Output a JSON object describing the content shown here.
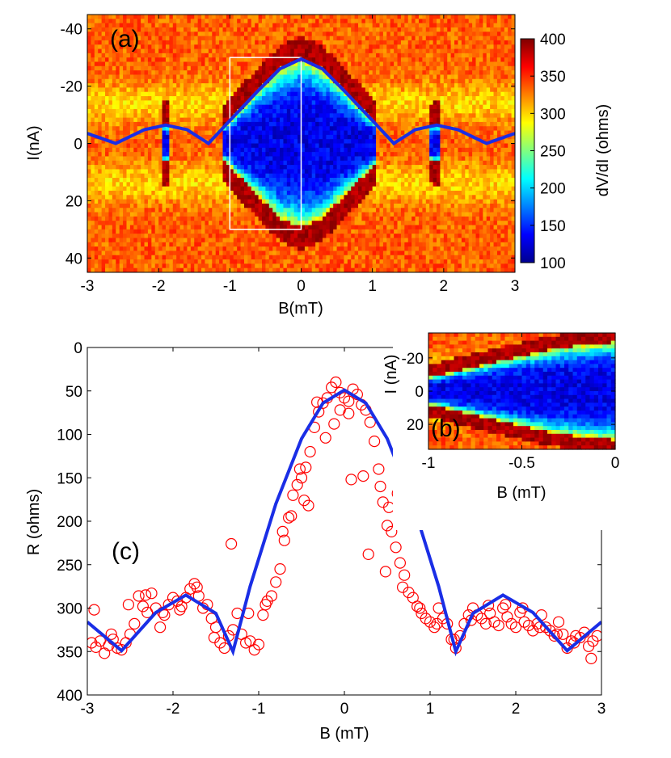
{
  "colors": {
    "fit_line": "#1a2ee6",
    "markers": "#ff0000",
    "frame": "#000000",
    "highlight_box": "#ffffff"
  },
  "colorscale": [
    "#00008f",
    "#0000ff",
    "#0080ff",
    "#00ffff",
    "#80ff80",
    "#ffff00",
    "#ff8000",
    "#ff0000",
    "#800000"
  ],
  "chart_data": [
    {
      "id": "a",
      "type": "heatmap",
      "panel_label": "(a)",
      "xlabel": "B(mT)",
      "ylabel": "I(nA)",
      "xlim": [
        -3,
        3
      ],
      "ylim": [
        -45,
        45
      ],
      "y_reversed": true,
      "xticks": [
        -3,
        -2,
        -1,
        0,
        1,
        2,
        3
      ],
      "xtick_labels": [
        "-3",
        "-2",
        "-1",
        "0",
        "1",
        "2",
        "3"
      ],
      "yticks": [
        -40,
        -20,
        0,
        20,
        40
      ],
      "ytick_labels": [
        "-40",
        "-20",
        "0",
        "20",
        "40"
      ],
      "colorbar": {
        "label": "dV/dI (ohms)",
        "range": [
          100,
          400
        ],
        "ticks": [
          100,
          150,
          200,
          250,
          300,
          350,
          400
        ],
        "tick_labels": [
          "100",
          "150",
          "200",
          "250",
          "300",
          "350",
          "400"
        ]
      },
      "overlay_line": {
        "name": "critical current envelope",
        "x": [
          -3.0,
          -2.6,
          -2.2,
          -1.9,
          -1.6,
          -1.3,
          -1.0,
          -0.6,
          -0.3,
          0.0,
          0.3,
          0.6,
          1.0,
          1.3,
          1.6,
          1.9,
          2.2,
          2.6,
          3.0
        ],
        "y": [
          -3.5,
          0.0,
          -4.8,
          -6.4,
          -4.8,
          0.0,
          -8.0,
          -18.5,
          -26.0,
          -29.5,
          -26.0,
          -18.5,
          -8.0,
          0.0,
          -4.8,
          -6.4,
          -4.8,
          0.0,
          -3.5
        ]
      },
      "highlight_box": {
        "x": [
          -1.0,
          0.0
        ],
        "y": [
          -30,
          30
        ]
      }
    },
    {
      "id": "b",
      "type": "heatmap",
      "panel_label": "(b)",
      "inset": true,
      "xlabel": "B (mT)",
      "ylabel": "I (nA)",
      "xlim": [
        -1,
        0
      ],
      "ylim": [
        -35,
        35
      ],
      "y_reversed": true,
      "xticks": [
        -1,
        -0.5,
        0
      ],
      "xtick_labels": [
        "-1",
        "-0.5",
        "0"
      ],
      "yticks": [
        -20,
        0,
        20
      ],
      "ytick_labels": [
        "-20",
        "0",
        "20"
      ]
    },
    {
      "id": "c",
      "type": "scatter",
      "panel_label": "(c)",
      "xlabel": "B (mT)",
      "ylabel": "R (ohms)",
      "xlim": [
        -3,
        3
      ],
      "ylim": [
        0,
        400
      ],
      "y_reversed": true,
      "xticks": [
        -3,
        -2,
        -1,
        0,
        1,
        2,
        3
      ],
      "xtick_labels": [
        "-3",
        "-2",
        "-1",
        "0",
        "1",
        "2",
        "3"
      ],
      "yticks": [
        0,
        50,
        100,
        150,
        200,
        250,
        300,
        350,
        400
      ],
      "ytick_labels": [
        "0",
        "50",
        "100",
        "150",
        "200",
        "250",
        "300",
        "350",
        "400"
      ],
      "fit_line": {
        "x": [
          -3.0,
          -2.6,
          -2.2,
          -1.85,
          -1.5,
          -1.3,
          -1.1,
          -0.8,
          -0.5,
          -0.25,
          0.0,
          0.25,
          0.5,
          0.8,
          1.1,
          1.3,
          1.5,
          1.85,
          2.2,
          2.6,
          3.0
        ],
        "y": [
          316,
          349,
          305,
          285,
          306,
          350,
          275,
          180,
          105,
          64,
          49,
          64,
          105,
          180,
          275,
          350,
          306,
          285,
          305,
          349,
          316
        ]
      },
      "points": {
        "x": [
          -2.95,
          -2.9,
          -2.85,
          -2.8,
          -2.75,
          -2.7,
          -2.65,
          -2.6,
          -2.55,
          -2.5,
          -2.45,
          -2.4,
          -2.35,
          -2.3,
          -2.25,
          -2.2,
          -2.15,
          -2.1,
          -2.05,
          -2.0,
          -1.95,
          -1.9,
          -1.85,
          -1.8,
          -1.75,
          -1.7,
          -1.65,
          -1.6,
          -1.55,
          -1.5,
          -1.45,
          -1.4,
          -1.35,
          -1.3,
          -1.25,
          -1.2,
          -1.15,
          -1.1,
          -1.05,
          -1.0,
          -0.95,
          -0.9,
          -0.85,
          -0.8,
          -0.75,
          -0.7,
          -0.65,
          -0.6,
          -0.55,
          -0.5,
          -0.45,
          -0.4,
          -0.35,
          -0.3,
          -0.25,
          -0.2,
          -0.15,
          -0.1,
          -0.05,
          0.0,
          0.05,
          0.1,
          0.15,
          0.2,
          0.25,
          0.3,
          0.35,
          0.4,
          0.45,
          0.5,
          0.55,
          0.6,
          0.65,
          0.7,
          0.75,
          0.8,
          0.85,
          0.9,
          0.95,
          1.0,
          1.05,
          1.1,
          1.15,
          1.2,
          1.25,
          1.3,
          1.35,
          1.4,
          1.45,
          1.5,
          1.55,
          1.6,
          1.65,
          1.7,
          1.75,
          1.8,
          1.85,
          1.9,
          1.95,
          2.0,
          2.05,
          2.1,
          2.15,
          2.2,
          2.25,
          2.3,
          2.35,
          2.4,
          2.45,
          2.5,
          2.55,
          2.6,
          2.65,
          2.7,
          2.75,
          2.8,
          2.85,
          2.9,
          2.95,
          -2.92,
          -2.72,
          -2.52,
          -2.32,
          -2.12,
          -1.92,
          -1.72,
          -1.52,
          -1.32,
          -1.12,
          -0.92,
          -0.72,
          -0.52,
          -0.32,
          -0.12,
          0.08,
          0.28,
          0.48,
          0.68,
          0.88,
          1.08,
          1.28,
          1.48,
          1.68,
          1.88,
          2.08,
          2.28,
          2.48,
          2.68,
          2.88,
          -0.47,
          -0.62,
          -0.42,
          0.62,
          0.42,
          0.52,
          -0.22,
          0.22,
          -0.05,
          0.05
        ],
        "y": [
          340,
          345,
          338,
          352,
          343,
          336,
          346,
          348,
          340,
          330,
          318,
          286,
          298,
          305,
          283,
          300,
          322,
          308,
          296,
          288,
          292,
          298,
          288,
          278,
          272,
          286,
          300,
          296,
          312,
          322,
          340,
          346,
          332,
          325,
          306,
          330,
          340,
          338,
          348,
          342,
          308,
          292,
          286,
          270,
          255,
          222,
          196,
          170,
          158,
          150,
          138,
          120,
          92,
          74,
          64,
          58,
          46,
          40,
          52,
          58,
          62,
          48,
          54,
          66,
          72,
          86,
          108,
          140,
          178,
          205,
          212,
          230,
          248,
          262,
          282,
          288,
          298,
          306,
          312,
          316,
          322,
          300,
          312,
          318,
          336,
          346,
          332,
          318,
          308,
          300,
          308,
          312,
          318,
          306,
          316,
          320,
          300,
          310,
          318,
          322,
          305,
          316,
          320,
          326,
          318,
          308,
          322,
          326,
          332,
          316,
          330,
          346,
          338,
          332,
          334,
          328,
          344,
          338,
          332,
          302,
          330,
          296,
          285,
          305,
          302,
          276,
          334,
          226,
          306,
          296,
          212,
          140,
          63,
          88,
          152,
          238,
          258,
          276,
          300,
          318,
          336,
          314,
          297,
          296,
          300,
          322,
          330,
          340,
          358,
          176,
          194,
          182,
          168,
          160,
          184,
          104,
          148,
          72,
          76
        ]
      }
    }
  ]
}
